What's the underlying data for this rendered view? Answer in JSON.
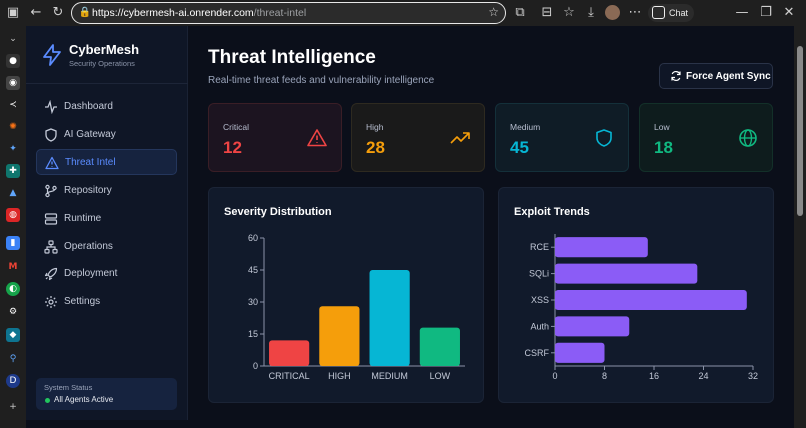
{
  "browser": {
    "url_host": "https://cybermesh-ai.onrender.com",
    "url_path": "/threat-intel",
    "chat_label": "Chat"
  },
  "sidebar": {
    "brand_name": "CyberMesh",
    "brand_sub": "Security Operations",
    "items": [
      {
        "label": "Dashboard",
        "icon": "activity-icon"
      },
      {
        "label": "AI Gateway",
        "icon": "shield-icon"
      },
      {
        "label": "Threat Intel",
        "icon": "warning-icon",
        "active": true
      },
      {
        "label": "Repository",
        "icon": "git-branch-icon"
      },
      {
        "label": "Runtime",
        "icon": "server-icon"
      },
      {
        "label": "Operations",
        "icon": "network-icon"
      },
      {
        "label": "Deployment",
        "icon": "rocket-icon"
      },
      {
        "label": "Settings",
        "icon": "gear-icon"
      }
    ],
    "status_title": "System Status",
    "status_value": "All Agents Active"
  },
  "page": {
    "title": "Threat Intelligence",
    "subtitle": "Real-time threat feeds and vulnerability intelligence",
    "sync_label": "Force Agent Sync"
  },
  "stats": [
    {
      "label": "Critical",
      "value": "12",
      "color": "#ef4444",
      "icon": "warning-icon"
    },
    {
      "label": "High",
      "value": "28",
      "color": "#f59e0b",
      "icon": "trending-up-icon"
    },
    {
      "label": "Medium",
      "value": "45",
      "color": "#06b6d4",
      "icon": "shield-icon"
    },
    {
      "label": "Low",
      "value": "18",
      "color": "#10b981",
      "icon": "globe-icon"
    }
  ],
  "chart_data": [
    {
      "type": "bar",
      "title": "Severity Distribution",
      "categories": [
        "CRITICAL",
        "HIGH",
        "MEDIUM",
        "LOW"
      ],
      "values": [
        12,
        28,
        45,
        18
      ],
      "colors": [
        "#ef4444",
        "#f59e0b",
        "#06b6d4",
        "#10b981"
      ],
      "ylim": [
        0,
        60
      ],
      "yticks": [
        "0",
        "15",
        "30",
        "45",
        "60"
      ]
    },
    {
      "type": "bar",
      "orientation": "horizontal",
      "title": "Exploit Trends",
      "categories": [
        "RCE",
        "SQLi",
        "XSS",
        "Auth",
        "CSRF"
      ],
      "values": [
        15,
        23,
        31,
        12,
        8
      ],
      "color": "#8b5cf6",
      "xlim": [
        0,
        32
      ],
      "xticks": [
        "0",
        "8",
        "16",
        "24",
        "32"
      ]
    }
  ]
}
